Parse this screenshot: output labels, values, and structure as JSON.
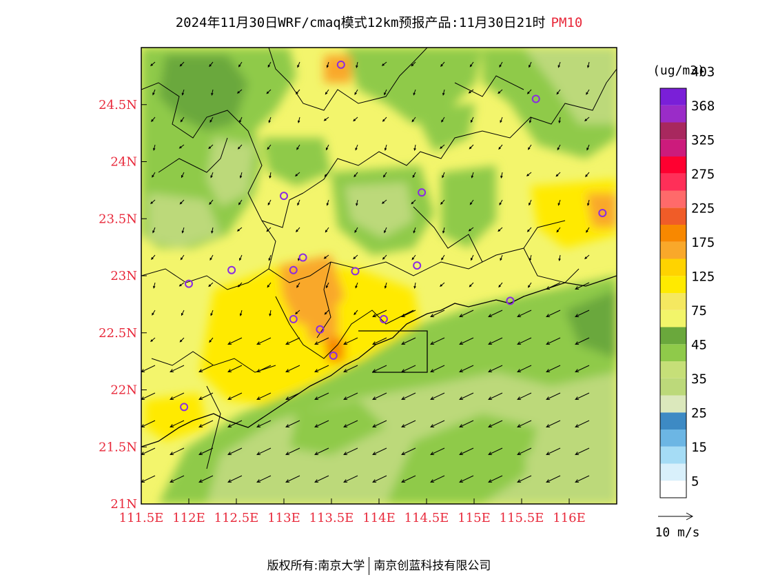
{
  "title": {
    "main": "2024年11月30日WRF/cmaq模式12km预报产品:11月30日21时",
    "variable": "PM10"
  },
  "map": {
    "lon_range": [
      111.5,
      116.5
    ],
    "lat_range": [
      21.0,
      25.0
    ],
    "lon_ticks": [
      "111.5E",
      "112E",
      "112.5E",
      "113E",
      "113.5E",
      "114E",
      "114.5E",
      "115E",
      "115.5E",
      "116E"
    ],
    "lat_ticks": [
      "24.5N",
      "24N",
      "23.5N",
      "23N",
      "22.5N",
      "22N",
      "21.5N",
      "21N"
    ],
    "label_color": "#e8283a",
    "station_marker_color": "#8a2be2",
    "stations": [
      {
        "lon": 113.6,
        "lat": 24.85
      },
      {
        "lon": 115.65,
        "lat": 24.55
      },
      {
        "lon": 113.0,
        "lat": 23.7
      },
      {
        "lon": 114.45,
        "lat": 23.73
      },
      {
        "lon": 116.35,
        "lat": 23.55
      },
      {
        "lon": 112.0,
        "lat": 22.93
      },
      {
        "lon": 112.45,
        "lat": 23.05
      },
      {
        "lon": 113.1,
        "lat": 23.05
      },
      {
        "lon": 113.2,
        "lat": 23.16
      },
      {
        "lon": 113.75,
        "lat": 23.04
      },
      {
        "lon": 114.4,
        "lat": 23.09
      },
      {
        "lon": 115.38,
        "lat": 22.78
      },
      {
        "lon": 113.1,
        "lat": 22.62
      },
      {
        "lon": 113.38,
        "lat": 22.53
      },
      {
        "lon": 114.05,
        "lat": 22.62
      },
      {
        "lon": 113.52,
        "lat": 22.3
      },
      {
        "lon": 111.95,
        "lat": 21.85
      }
    ]
  },
  "colorbar": {
    "unit": "(ug/m3)",
    "colors": [
      "#ffffff",
      "#d9f0fb",
      "#a5dcf5",
      "#6cb6e4",
      "#3d8ac4",
      "#dbe8bc",
      "#bcd97a",
      "#c6df78",
      "#8fca4a",
      "#6aa83c",
      "#f2f56a",
      "#f5e860",
      "#ffea00",
      "#ffd300",
      "#f9a82a",
      "#f88800",
      "#f05c28",
      "#ff6a6a",
      "#ff2f58",
      "#ff0030",
      "#cc1b7c",
      "#a8285e",
      "#9a2cc8",
      "#7a1fd8"
    ],
    "labels": [
      "5",
      "15",
      "25",
      "35",
      "45",
      "75",
      "125",
      "175",
      "225",
      "275",
      "325",
      "368",
      "403"
    ]
  },
  "wind_reference": {
    "label": "10 m/s"
  },
  "footer": {
    "owner": "版权所有:南京大学",
    "partner": "南京创蓝科技有限公司"
  }
}
